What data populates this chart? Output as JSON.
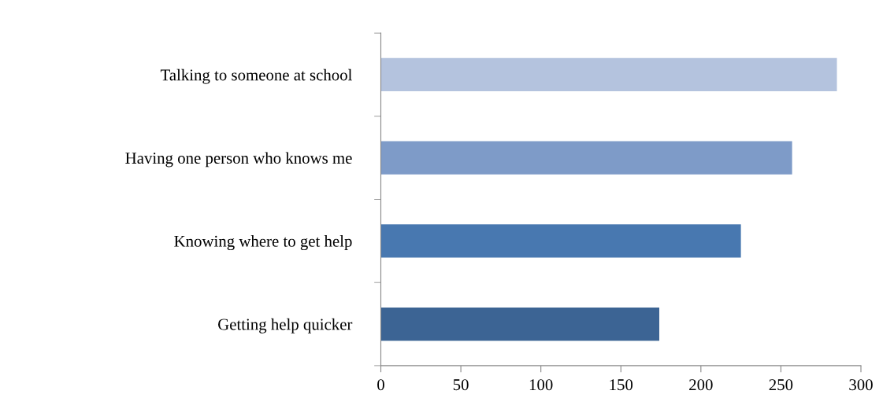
{
  "chart_data": {
    "type": "bar",
    "orientation": "horizontal",
    "categories": [
      "Talking to someone at school",
      "Having one person who knows me",
      "Knowing where to get help",
      "Getting help quicker"
    ],
    "values": [
      285,
      257,
      225,
      174
    ],
    "colors": [
      "#b4c3de",
      "#7e9bc8",
      "#4878b0",
      "#3c6494"
    ],
    "xlim": [
      0,
      300
    ],
    "xticks": [
      0,
      50,
      100,
      150,
      200,
      250,
      300
    ],
    "grid": false,
    "legend": false
  }
}
